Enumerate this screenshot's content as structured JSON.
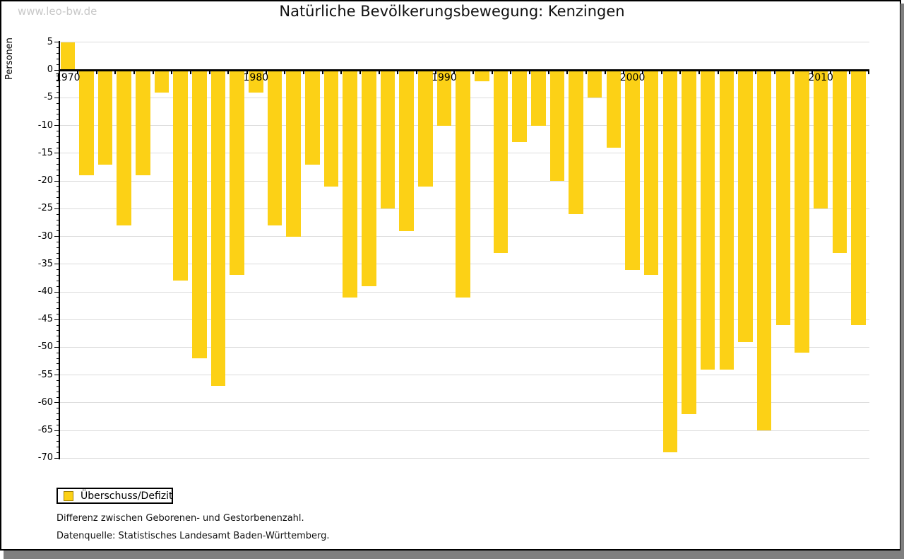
{
  "page": {
    "watermark": "www.leo-bw.de"
  },
  "chart_data": {
    "type": "bar",
    "title": "Natürliche Bevölkerungsbewegung: Kenzingen",
    "ylabel": "Personen",
    "xlabel": "",
    "legend_label": "Überschuss/Defizit",
    "categories": [
      1970,
      1971,
      1972,
      1973,
      1974,
      1975,
      1976,
      1977,
      1978,
      1979,
      1980,
      1981,
      1982,
      1983,
      1984,
      1985,
      1986,
      1987,
      1988,
      1989,
      1990,
      1991,
      1992,
      1993,
      1994,
      1995,
      1996,
      1997,
      1998,
      1999,
      2000,
      2001,
      2002,
      2003,
      2004,
      2005,
      2006,
      2007,
      2008,
      2009,
      2010,
      2011,
      2012
    ],
    "values": [
      5,
      -19,
      -17,
      -28,
      -19,
      -4,
      -38,
      -52,
      -57,
      -37,
      -4,
      -28,
      -30,
      -17,
      -21,
      -41,
      -39,
      -25,
      -29,
      -21,
      -10,
      -41,
      -2,
      -33,
      -13,
      -10,
      -20,
      -26,
      -5,
      -14,
      -36,
      -37,
      -69,
      -62,
      -54,
      -54,
      -49,
      -65,
      -46,
      -51,
      -25,
      -33,
      -46
    ],
    "ylim": [
      -70,
      5
    ],
    "ytick_step": 5,
    "xtick_labels": [
      "1970",
      "1980",
      "1990",
      "2000",
      "2010"
    ],
    "xtick_positions": [
      0,
      10,
      20,
      30,
      40
    ],
    "grid": true,
    "legend_position": "bottom-left",
    "bar_color": "#fcd116",
    "grid_color": "#dcdcdc",
    "watermark_color": "#c8c8c8",
    "legend_swatch_border": "#a08000"
  },
  "footnotes": {
    "line1": "Differenz zwischen Geborenen- und Gestorbenenzahl.",
    "line2": "Datenquelle: Statistisches Landesamt Baden-Württemberg."
  }
}
